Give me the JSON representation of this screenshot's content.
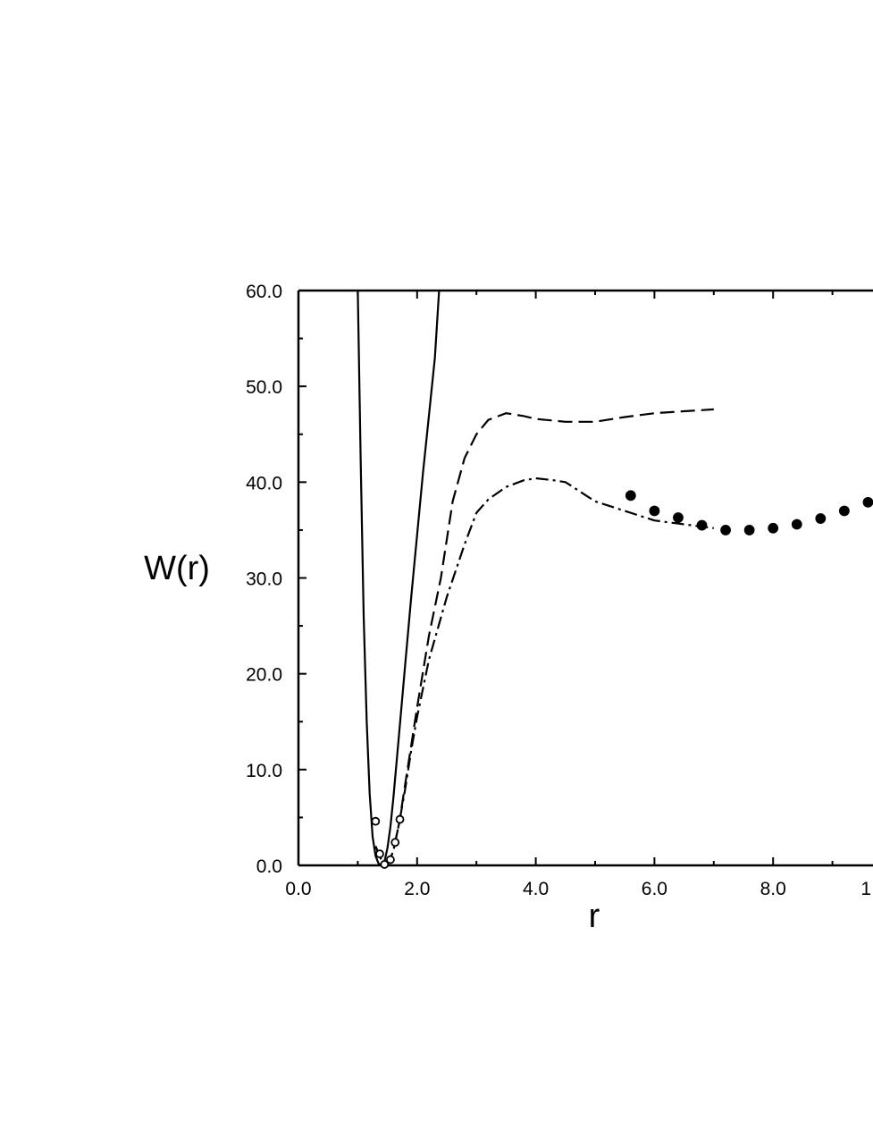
{
  "chart_data": {
    "type": "line",
    "xlabel": "r",
    "ylabel": "W(r)",
    "xlim": [
      0.0,
      10.0
    ],
    "ylim": [
      0.0,
      60.0
    ],
    "x_ticks": [
      "0.0",
      "2.0",
      "4.0",
      "6.0",
      "8.0",
      "1"
    ],
    "y_ticks": [
      "0.0",
      "10.0",
      "20.0",
      "30.0",
      "40.0",
      "50.0",
      "60.0"
    ],
    "grid": false,
    "legend": "none",
    "series": [
      {
        "style": "solid",
        "x": [
          1.0,
          1.05,
          1.1,
          1.15,
          1.2,
          1.25,
          1.3,
          1.35,
          1.4,
          1.45,
          1.5,
          1.55,
          1.6,
          1.7,
          1.8,
          1.9,
          2.0,
          2.1,
          2.2,
          2.3,
          2.37
        ],
        "y": [
          60.0,
          42.0,
          26.0,
          15.0,
          7.5,
          3.0,
          1.0,
          0.2,
          0.0,
          0.4,
          1.8,
          4.0,
          7.0,
          14.0,
          21.0,
          28.0,
          34.5,
          41.0,
          47.0,
          53.0,
          60.0
        ]
      },
      {
        "style": "dashed",
        "x": [
          1.3,
          1.4,
          1.5,
          1.6,
          1.7,
          1.8,
          1.9,
          2.0,
          2.2,
          2.4,
          2.6,
          2.8,
          3.0,
          3.2,
          3.5,
          3.8,
          4.0,
          4.5,
          5.0,
          5.5,
          6.0,
          6.5,
          7.0
        ],
        "y": [
          2.0,
          0.5,
          0.0,
          1.5,
          4.5,
          8.5,
          12.5,
          16.5,
          24.0,
          30.0,
          38.0,
          42.5,
          45.0,
          46.5,
          47.2,
          46.9,
          46.6,
          46.3,
          46.3,
          46.8,
          47.2,
          47.4,
          47.6
        ]
      },
      {
        "style": "dash-dot",
        "x": [
          1.3,
          1.4,
          1.5,
          1.6,
          1.7,
          1.8,
          1.9,
          2.0,
          2.2,
          2.5,
          2.8,
          3.0,
          3.2,
          3.5,
          3.8,
          4.0,
          4.3,
          4.5,
          5.0,
          5.5,
          6.0,
          6.5,
          7.0
        ],
        "y": [
          2.0,
          0.5,
          0.0,
          1.5,
          4.5,
          8.0,
          12.0,
          15.5,
          21.5,
          28.0,
          33.5,
          36.8,
          38.2,
          39.5,
          40.2,
          40.4,
          40.2,
          40.0,
          38.0,
          37.0,
          36.0,
          35.6,
          35.2
        ]
      },
      {
        "style": "open-circles",
        "x": [
          1.3,
          1.37,
          1.45,
          1.55,
          1.63,
          1.71
        ],
        "y": [
          4.6,
          1.2,
          0.1,
          0.6,
          2.4,
          4.8
        ]
      },
      {
        "style": "filled-circles",
        "x": [
          5.6,
          6.0,
          6.4,
          6.8,
          7.2,
          7.6,
          8.0,
          8.4,
          8.8,
          9.2,
          9.6
        ],
        "y": [
          38.6,
          37.0,
          36.3,
          35.5,
          35.0,
          35.0,
          35.2,
          35.6,
          36.2,
          37.0,
          37.9
        ]
      }
    ]
  }
}
